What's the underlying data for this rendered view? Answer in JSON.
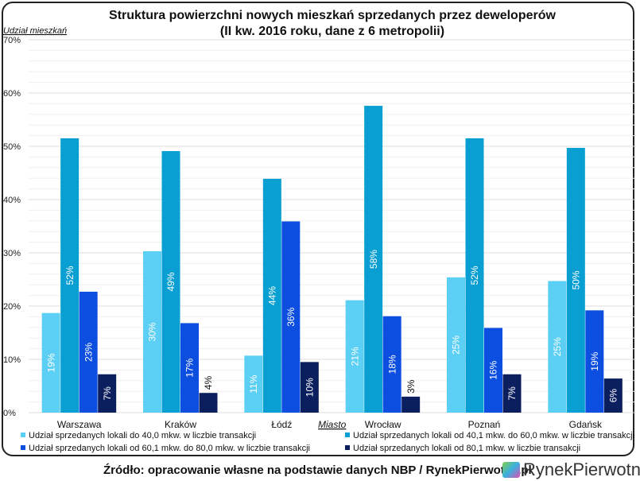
{
  "chart_data": {
    "type": "bar",
    "title": "Struktura powierzchni nowych mieszkań sprzedanych przez deweloperów",
    "subtitle": "(II kw. 2016 roku, dane z 6 metropolii)",
    "ylabel": "Udział mieszkań",
    "xlabel": "Miasto",
    "ylim": [
      0,
      70
    ],
    "yticks": [
      "0%",
      "10%",
      "20%",
      "30%",
      "40%",
      "50%",
      "60%",
      "70%"
    ],
    "grid": true,
    "legend_position": "bottom",
    "categories": [
      "Warszawa",
      "Kraków",
      "Łódź",
      "Wrocław",
      "Poznań",
      "Gdańsk"
    ],
    "series": [
      {
        "name": "Udział sprzedanych lokali do 40,0 mkw. w liczbie transakcji",
        "color": "#5ccff4",
        "values": [
          18.7,
          30.3,
          10.7,
          21.1,
          25.4,
          24.7
        ],
        "labels": [
          "19%",
          "30%",
          "11%",
          "21%",
          "25%",
          "25%"
        ]
      },
      {
        "name": "Udział sprzedanych lokali od 40,1 mkw. do 60,0 mkw. w liczbie transakcji",
        "color": "#0a9fd2",
        "values": [
          51.5,
          49.1,
          43.9,
          57.6,
          51.5,
          49.7
        ],
        "labels": [
          "52%",
          "49%",
          "44%",
          "58%",
          "52%",
          "50%"
        ]
      },
      {
        "name": "Udział sprzedanych lokali od 60,1 mkw. do 80,0 mkw. w liczbie transakcji",
        "color": "#0b4ee0",
        "values": [
          22.7,
          16.8,
          35.9,
          18.1,
          15.9,
          19.2
        ],
        "labels": [
          "23%",
          "17%",
          "36%",
          "18%",
          "16%",
          "19%"
        ]
      },
      {
        "name": "Udział sprzedanych lokali od 80,1 mkw. w liczbie transakcji",
        "color": "#0b1f5e",
        "values": [
          7.2,
          3.7,
          9.5,
          3.0,
          7.2,
          6.4
        ],
        "labels": [
          "7%",
          "4%",
          "10%",
          "3%",
          "7%",
          "6%"
        ]
      }
    ]
  },
  "footer": {
    "source": "Źródło: opracowanie własne na podstawie danych NBP / RynekPierwotny.pl",
    "logo_text": "RynekPierwotny"
  }
}
